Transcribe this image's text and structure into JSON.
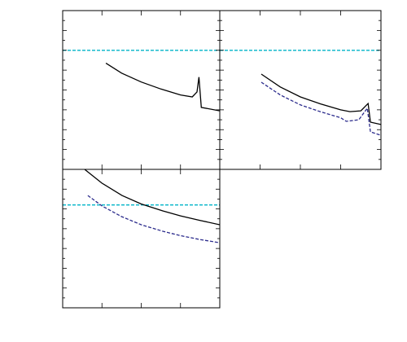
{
  "chart_data": [
    {
      "type": "line",
      "xlim": [
        0,
        4
      ],
      "xticks": [
        1,
        2,
        3
      ],
      "ylim": [
        0,
        8
      ],
      "yticks": [
        0.5,
        1,
        1.5,
        2,
        2.5,
        3,
        3.5,
        4,
        4.5,
        5,
        5.5,
        6,
        6.5,
        7,
        7.5
      ],
      "series": [
        {
          "color": "#00b4c8",
          "dash": true,
          "x": [
            0,
            4
          ],
          "values": [
            6,
            6
          ]
        },
        {
          "color": "#000000",
          "dash": false,
          "x": [
            1.1,
            1.5,
            2,
            2.5,
            3,
            3.3,
            3.42,
            3.47,
            3.53,
            4
          ],
          "values": [
            5.35,
            4.85,
            4.4,
            4.05,
            3.75,
            3.65,
            3.9,
            4.65,
            3.12,
            2.95
          ]
        }
      ]
    },
    {
      "type": "line",
      "xlim": [
        0,
        4
      ],
      "xticks": [
        1,
        2,
        3
      ],
      "ylim": [
        0,
        8
      ],
      "yticks": [
        0.5,
        1,
        1.5,
        2,
        2.5,
        3,
        3.5,
        4,
        4.5,
        5,
        5.5,
        6,
        6.5,
        7,
        7.5
      ],
      "series": [
        {
          "color": "#00b4c8",
          "dash": true,
          "x": [
            0,
            4
          ],
          "values": [
            6,
            6
          ]
        },
        {
          "color": "#000000",
          "dash": false,
          "x": [
            1.03,
            1.5,
            2,
            2.5,
            3,
            3.23,
            3.5,
            3.68,
            3.74,
            4
          ],
          "values": [
            4.8,
            4.15,
            3.65,
            3.3,
            3.0,
            2.91,
            2.95,
            3.32,
            2.38,
            2.26
          ]
        },
        {
          "color": "#2b2b8c",
          "dash": true,
          "x": [
            1.03,
            1.5,
            2,
            2.5,
            3,
            3.14,
            3.45,
            3.66,
            3.74,
            4
          ],
          "values": [
            4.39,
            3.75,
            3.25,
            2.9,
            2.6,
            2.42,
            2.5,
            3.08,
            1.89,
            1.72
          ]
        }
      ]
    },
    {
      "type": "line",
      "xlim": [
        0,
        4
      ],
      "xticks": [
        1,
        2,
        3
      ],
      "ylim": [
        0,
        7
      ],
      "yticks": [
        0.5,
        1,
        1.5,
        2,
        2.5,
        3,
        3.5,
        4,
        4.5,
        5,
        5.5,
        6,
        6.5
      ],
      "series": [
        {
          "color": "#00b4c8",
          "dash": true,
          "x": [
            0,
            4
          ],
          "values": [
            5.2,
            5.2
          ]
        },
        {
          "color": "#000000",
          "dash": false,
          "x": [
            0.56,
            1,
            1.51,
            2,
            2.55,
            3,
            3.5,
            4
          ],
          "values": [
            7,
            6.3,
            5.68,
            5.25,
            4.9,
            4.65,
            4.42,
            4.2
          ]
        },
        {
          "color": "#2b2b8c",
          "dash": true,
          "x": [
            0.64,
            1,
            1.5,
            2,
            2.55,
            3,
            3.5,
            4
          ],
          "values": [
            5.68,
            5.15,
            4.61,
            4.2,
            3.87,
            3.65,
            3.45,
            3.29
          ]
        }
      ]
    }
  ]
}
